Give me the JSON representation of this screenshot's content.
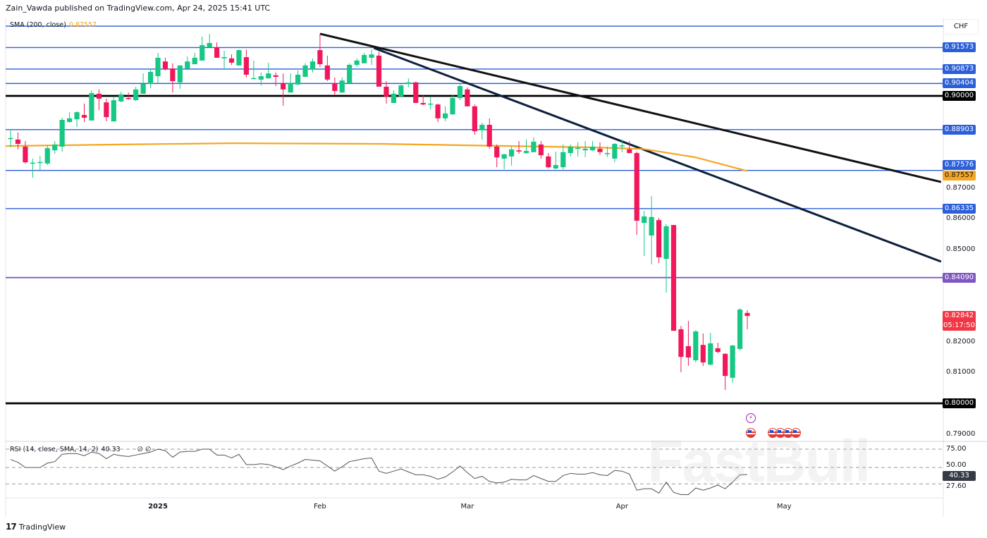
{
  "header": {
    "text": "Zain_Vawda published on TradingView.com, Apr 24, 2025 15:41 UTC"
  },
  "sma_legend": {
    "label": "SMA (200, close)",
    "value": "0.87557"
  },
  "rsi_legend": {
    "label": "RSI (14, close, SMA, 14, 2)",
    "value": "40.33",
    "empty": "∅ ∅"
  },
  "currency": "CHF",
  "watermark": "FastBull",
  "footer": {
    "logo": "17",
    "brand": "TradingView"
  },
  "colors": {
    "up": "#17c784",
    "down": "#f0185a",
    "level_blue": "#2b5fd9",
    "level_black": "#000000",
    "level_purple": "#7e57c2",
    "sma": "#f5a623",
    "trend_black": "#111111",
    "trend_navy": "#0d1f3c",
    "rsi": "#555555"
  },
  "events": {
    "lightning": "lightning-icon",
    "us_flags": 5
  },
  "chart_data": {
    "type": "candlestick",
    "symbol_currency": "CHF",
    "price_ticks": [
      "0.87000",
      "0.86000",
      "0.85000",
      "0.82000",
      "0.81000",
      "0.79000"
    ],
    "price_tick_values": [
      0.87,
      0.86,
      0.85,
      0.82,
      0.81,
      0.79
    ],
    "x_ticks": [
      {
        "label": "2025",
        "index": 20,
        "bold": true
      },
      {
        "label": "Feb",
        "index": 42
      },
      {
        "label": "Mar",
        "index": 62
      },
      {
        "label": "Apr",
        "index": 83
      },
      {
        "label": "May",
        "index": 105
      }
    ],
    "candles_ohlc": [
      [
        0.886,
        0.8892,
        0.8833,
        0.8863
      ],
      [
        0.8858,
        0.8881,
        0.8826,
        0.8844
      ],
      [
        0.8835,
        0.8853,
        0.878,
        0.8784
      ],
      [
        0.878,
        0.8796,
        0.8734,
        0.8783
      ],
      [
        0.8783,
        0.8805,
        0.8759,
        0.8785
      ],
      [
        0.878,
        0.8839,
        0.8775,
        0.883
      ],
      [
        0.8823,
        0.8853,
        0.8812,
        0.8842
      ],
      [
        0.8835,
        0.8929,
        0.8819,
        0.8922
      ],
      [
        0.8915,
        0.8947,
        0.8913,
        0.8927
      ],
      [
        0.8924,
        0.895,
        0.8899,
        0.8947
      ],
      [
        0.8938,
        0.8975,
        0.8915,
        0.8929
      ],
      [
        0.892,
        0.9018,
        0.892,
        0.9009
      ],
      [
        0.9007,
        0.9021,
        0.8954,
        0.8991
      ],
      [
        0.8979,
        0.8991,
        0.8917,
        0.8931
      ],
      [
        0.8917,
        0.8998,
        0.8917,
        0.8986
      ],
      [
        0.8982,
        0.9014,
        0.8979,
        0.9005
      ],
      [
        0.8993,
        0.9011,
        0.8988,
        0.899
      ],
      [
        0.8986,
        0.903,
        0.8984,
        0.9021
      ],
      [
        0.9007,
        0.9073,
        0.9007,
        0.9039
      ],
      [
        0.9039,
        0.9087,
        0.9025,
        0.9078
      ],
      [
        0.9064,
        0.914,
        0.9041,
        0.9124
      ],
      [
        0.9112,
        0.9124,
        0.9083,
        0.9087
      ],
      [
        0.9089,
        0.9106,
        0.9011,
        0.9048
      ],
      [
        0.9044,
        0.9099,
        0.9023,
        0.9099
      ],
      [
        0.9089,
        0.9128,
        0.9089,
        0.9112
      ],
      [
        0.9103,
        0.914,
        0.9103,
        0.9124
      ],
      [
        0.9115,
        0.9193,
        0.9115,
        0.9165
      ],
      [
        0.9158,
        0.9202,
        0.9158,
        0.9172
      ],
      [
        0.9158,
        0.9174,
        0.9124,
        0.9124
      ],
      [
        0.9122,
        0.9147,
        0.9085,
        0.9126
      ],
      [
        0.9122,
        0.9135,
        0.9101,
        0.9108
      ],
      [
        0.9099,
        0.9151,
        0.9099,
        0.9149
      ],
      [
        0.9126,
        0.9151,
        0.906,
        0.9069
      ],
      [
        0.9056,
        0.9115,
        0.9054,
        0.9058
      ],
      [
        0.9053,
        0.9076,
        0.9034,
        0.9064
      ],
      [
        0.9057,
        0.9108,
        0.9057,
        0.9073
      ],
      [
        0.9067,
        0.9076,
        0.9032,
        0.9062
      ],
      [
        0.9041,
        0.9073,
        0.8968,
        0.9021
      ],
      [
        0.9011,
        0.9073,
        0.9011,
        0.9041
      ],
      [
        0.9037,
        0.9083,
        0.9035,
        0.9069
      ],
      [
        0.9062,
        0.9106,
        0.9062,
        0.9099
      ],
      [
        0.9087,
        0.9122,
        0.9076,
        0.9112
      ],
      [
        0.9149,
        0.9202,
        0.9094,
        0.9103
      ],
      [
        0.9099,
        0.9131,
        0.9048,
        0.9053
      ],
      [
        0.9041,
        0.906,
        0.9002,
        0.9016
      ],
      [
        0.9011,
        0.906,
        0.9011,
        0.905
      ],
      [
        0.9041,
        0.9106,
        0.9041,
        0.9101
      ],
      [
        0.9101,
        0.9122,
        0.9094,
        0.9115
      ],
      [
        0.9106,
        0.914,
        0.9106,
        0.9133
      ],
      [
        0.9124,
        0.9151,
        0.9101,
        0.9135
      ],
      [
        0.9131,
        0.9144,
        0.903,
        0.903
      ],
      [
        0.903,
        0.9048,
        0.8975,
        0.8998
      ],
      [
        0.8977,
        0.9018,
        0.8977,
        0.9007
      ],
      [
        0.8998,
        0.9037,
        0.8998,
        0.9034
      ],
      [
        0.9039,
        0.9057,
        0.9028,
        0.9044
      ],
      [
        0.9044,
        0.9046,
        0.8977,
        0.8977
      ],
      [
        0.8977,
        0.9002,
        0.897,
        0.8972
      ],
      [
        0.8972,
        0.8998,
        0.8956,
        0.8975
      ],
      [
        0.8972,
        0.8975,
        0.8915,
        0.8927
      ],
      [
        0.8927,
        0.8966,
        0.8918,
        0.8943
      ],
      [
        0.894,
        0.9002,
        0.8938,
        0.8993
      ],
      [
        0.8993,
        0.9037,
        0.8986,
        0.9032
      ],
      [
        0.9021,
        0.9028,
        0.8966,
        0.8966
      ],
      [
        0.8966,
        0.8972,
        0.8874,
        0.8885
      ],
      [
        0.8888,
        0.8913,
        0.8858,
        0.8906
      ],
      [
        0.8906,
        0.8927,
        0.8828,
        0.8835
      ],
      [
        0.8835,
        0.8842,
        0.8768,
        0.88
      ],
      [
        0.8796,
        0.8812,
        0.8761,
        0.881
      ],
      [
        0.8803,
        0.8835,
        0.8773,
        0.8826
      ],
      [
        0.8823,
        0.8853,
        0.8812,
        0.8819
      ],
      [
        0.8814,
        0.8858,
        0.8812,
        0.8821
      ],
      [
        0.8817,
        0.8865,
        0.8817,
        0.8851
      ],
      [
        0.8842,
        0.8853,
        0.8796,
        0.8807
      ],
      [
        0.8803,
        0.8814,
        0.8764,
        0.8768
      ],
      [
        0.8764,
        0.8819,
        0.8761,
        0.8775
      ],
      [
        0.8768,
        0.8842,
        0.8761,
        0.8817
      ],
      [
        0.8814,
        0.8842,
        0.8803,
        0.8835
      ],
      [
        0.883,
        0.8849,
        0.8803,
        0.8831
      ],
      [
        0.8823,
        0.8853,
        0.8801,
        0.8828
      ],
      [
        0.8823,
        0.8853,
        0.8821,
        0.8835
      ],
      [
        0.8828,
        0.8849,
        0.8808,
        0.8817
      ],
      [
        0.8812,
        0.8835,
        0.8801,
        0.8814
      ],
      [
        0.8796,
        0.8846,
        0.8784,
        0.8844
      ],
      [
        0.8837,
        0.8858,
        0.8817,
        0.8839
      ],
      [
        0.8826,
        0.8853,
        0.8814,
        0.8814
      ],
      [
        0.8814,
        0.8819,
        0.8548,
        0.8594
      ],
      [
        0.8587,
        0.8626,
        0.8479,
        0.8608
      ],
      [
        0.8546,
        0.8674,
        0.8452,
        0.8606
      ],
      [
        0.8596,
        0.8603,
        0.8456,
        0.8475
      ],
      [
        0.847,
        0.8583,
        0.836,
        0.8576
      ],
      [
        0.858,
        0.858,
        0.8236,
        0.8236
      ],
      [
        0.8241,
        0.8252,
        0.8101,
        0.8151
      ],
      [
        0.8186,
        0.8268,
        0.8122,
        0.8149
      ],
      [
        0.814,
        0.8238,
        0.8133,
        0.8234
      ],
      [
        0.819,
        0.8227,
        0.8122,
        0.8133
      ],
      [
        0.8126,
        0.8229,
        0.8122,
        0.8195
      ],
      [
        0.8179,
        0.8197,
        0.8163,
        0.8167
      ],
      [
        0.8161,
        0.8163,
        0.8044,
        0.8089
      ],
      [
        0.8083,
        0.819,
        0.8067,
        0.8188
      ],
      [
        0.8177,
        0.831,
        0.8172,
        0.8305
      ],
      [
        0.8294,
        0.8303,
        0.8241,
        0.82842
      ]
    ],
    "sma_200": [
      [
        0,
        0.8837
      ],
      [
        15,
        0.8842
      ],
      [
        30,
        0.8846
      ],
      [
        50,
        0.8844
      ],
      [
        65,
        0.8838
      ],
      [
        80,
        0.8832
      ],
      [
        86,
        0.8827
      ],
      [
        93,
        0.88
      ],
      [
        100,
        0.87557
      ]
    ],
    "levels": [
      {
        "price": 0.9227,
        "style": "blue",
        "label": ""
      },
      {
        "price": 0.91573,
        "style": "blue",
        "label": "0.91573"
      },
      {
        "price": 0.90873,
        "style": "blue",
        "label": "0.90873"
      },
      {
        "price": 0.90404,
        "style": "blue",
        "label": "0.90404"
      },
      {
        "price": 0.9,
        "style": "black",
        "label": "0.90000"
      },
      {
        "price": 0.88903,
        "style": "blue",
        "label": "0.88903"
      },
      {
        "price": 0.87576,
        "style": "blue",
        "label": "0.87576"
      },
      {
        "price": 0.86335,
        "style": "blue",
        "label": "0.86335"
      },
      {
        "price": 0.8409,
        "style": "purple",
        "label": "0.84090"
      },
      {
        "price": 0.8,
        "style": "black",
        "label": "0.80000"
      }
    ],
    "sma_badge": "0.87557",
    "last_price": {
      "value": "0.82842",
      "countdown": "05:17:50"
    },
    "trendlines": [
      {
        "name": "black",
        "from": [
          42,
          0.9202
        ],
        "to": [
          126.3,
          0.872
        ]
      },
      {
        "name": "navy",
        "from": [
          49.3,
          0.9156
        ],
        "to": [
          126.3,
          0.8461
        ]
      }
    ],
    "rsi": {
      "ticks": [
        "75.00",
        "50.00",
        "27.60"
      ],
      "tick_values": [
        75,
        50,
        27.6
      ],
      "last": "40.33",
      "values": [
        61,
        57,
        50,
        50,
        50,
        56,
        58,
        68,
        69,
        69,
        66,
        71,
        69,
        62,
        68,
        66,
        65,
        67,
        69,
        71,
        75,
        73,
        64,
        71,
        72,
        72,
        75,
        75,
        67,
        67,
        63,
        68,
        54,
        54,
        55,
        54,
        51,
        47,
        52,
        56,
        61,
        60,
        59,
        52,
        45,
        51,
        58,
        60,
        62,
        63,
        45,
        42,
        45,
        48,
        44,
        40,
        40,
        38,
        34,
        37,
        44,
        52,
        43,
        35,
        38,
        31,
        29,
        30,
        34,
        33,
        33,
        39,
        35,
        31,
        31,
        39,
        42,
        41,
        41,
        43,
        40,
        39,
        46,
        45,
        41,
        19,
        21,
        21,
        15,
        30,
        16,
        13,
        13,
        22,
        19,
        22,
        26,
        21,
        30,
        40,
        40.33
      ]
    }
  }
}
